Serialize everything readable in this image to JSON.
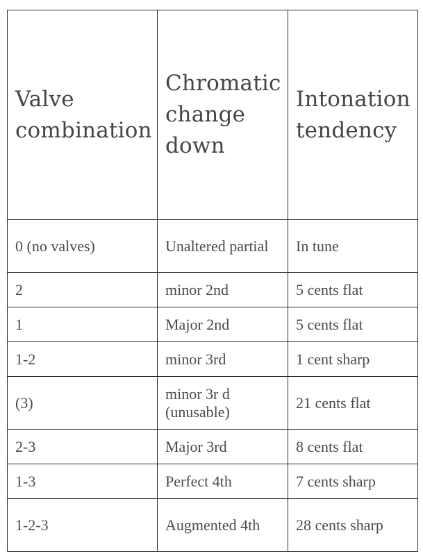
{
  "table": {
    "headers": [
      "Valve combination",
      "Chromatic change down",
      "Intonation tendency"
    ],
    "rows": [
      {
        "valves": "0 (no valves)",
        "change": "Unaltered partial",
        "tendency": "In tune"
      },
      {
        "valves": "2",
        "change": "minor 2nd",
        "tendency": "5 cents flat"
      },
      {
        "valves": "1",
        "change": "Major 2nd",
        "tendency": "5 cents flat"
      },
      {
        "valves": "1-2",
        "change": "minor 3rd",
        "tendency": "1 cent sharp"
      },
      {
        "valves": "(3)",
        "change": "minor 3r d (unusable)",
        "tendency": "21 cents flat"
      },
      {
        "valves": "2-3",
        "change": "Major 3rd",
        "tendency": "8 cents flat"
      },
      {
        "valves": "1-3",
        "change": "Perfect 4th",
        "tendency": "7 cents sharp"
      },
      {
        "valves": "1-2-3",
        "change": "Augmented 4th",
        "tendency": "28 cents sharp"
      }
    ]
  }
}
